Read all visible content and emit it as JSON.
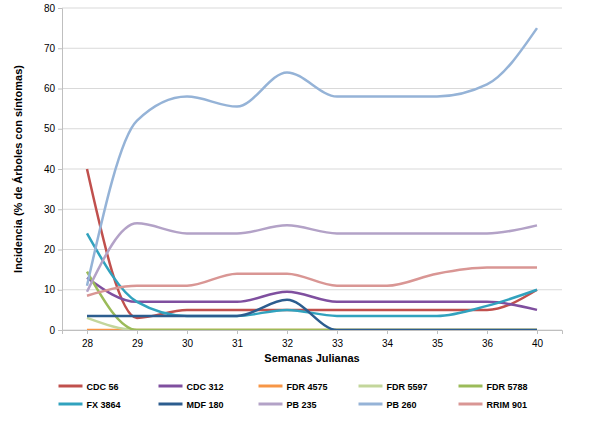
{
  "chart_data": {
    "type": "line",
    "x_label": "Semanas Julianas",
    "y_label": "Incidencia (% de Árboles con síntomas)",
    "categories": [
      "28",
      "29",
      "30",
      "31",
      "32",
      "33",
      "34",
      "35",
      "36",
      "40"
    ],
    "ylim": [
      0,
      80
    ],
    "yticks": [
      0,
      10,
      20,
      30,
      40,
      50,
      60,
      70,
      80
    ],
    "grid": true,
    "legend": "bottom",
    "series": [
      {
        "name": "CDC 56",
        "color": "#c0504d",
        "values": [
          40,
          3,
          5,
          5,
          5,
          5,
          5,
          5,
          5,
          10
        ]
      },
      {
        "name": "CDC 312",
        "color": "#7f4f9f",
        "values": [
          13,
          7,
          7,
          7,
          9.5,
          7,
          7,
          7,
          7,
          5
        ]
      },
      {
        "name": "FDR 4575",
        "color": "#f79646",
        "values": [
          0,
          0,
          0,
          0,
          0,
          0,
          0,
          0,
          0,
          0
        ]
      },
      {
        "name": "FDR 5597",
        "color": "#c3d69b",
        "values": [
          3,
          0,
          0,
          0,
          0,
          0,
          0,
          0,
          0,
          0
        ]
      },
      {
        "name": "FDR 5788",
        "color": "#9bbb59",
        "values": [
          14.5,
          0,
          0,
          0,
          0,
          0,
          0,
          0,
          0,
          0
        ]
      },
      {
        "name": "FX 3864",
        "color": "#31a2be",
        "values": [
          24,
          7,
          3.5,
          3.5,
          5,
          3.5,
          3.5,
          3.5,
          6,
          10
        ]
      },
      {
        "name": "MDF 180",
        "color": "#2c5d8f",
        "values": [
          3.5,
          3.5,
          3.5,
          3.5,
          7.5,
          0,
          0,
          0,
          0,
          0
        ]
      },
      {
        "name": "PB 235",
        "color": "#b3a2c7",
        "values": [
          9.5,
          26.5,
          24,
          24,
          26,
          24,
          24,
          24,
          24,
          26
        ]
      },
      {
        "name": "PB 260",
        "color": "#95b3d7",
        "values": [
          11,
          52,
          58,
          55.5,
          64,
          58,
          58,
          58,
          61,
          75
        ]
      },
      {
        "name": "RRIM 901",
        "color": "#d99694",
        "values": [
          8.5,
          11,
          11,
          14,
          14,
          11,
          11,
          14,
          15.5,
          15.5
        ]
      }
    ]
  }
}
